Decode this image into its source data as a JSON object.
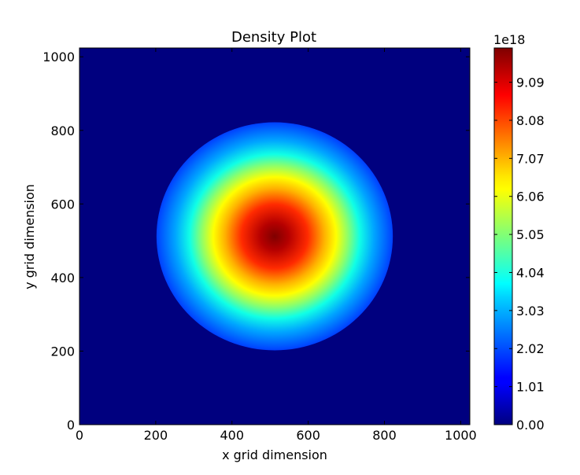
{
  "chart_data": {
    "type": "heatmap",
    "title": "Density Plot",
    "xlabel": "x grid dimension",
    "ylabel": "y grid dimension",
    "xlim": [
      0,
      1024
    ],
    "ylim": [
      0,
      1024
    ],
    "x_ticks": [
      0,
      200,
      400,
      600,
      800,
      1000
    ],
    "y_ticks": [
      0,
      200,
      400,
      600,
      800,
      1000
    ],
    "grid": false,
    "colormap": "jet",
    "background_value": 0,
    "peak": {
      "x": 512,
      "y": 512,
      "value": 1e+19
    },
    "disk_radius": 310,
    "colorbar": {
      "multiplier_label": "1e18",
      "ticks": [
        0.0,
        1.01,
        2.02,
        3.03,
        4.04,
        5.05,
        6.06,
        7.07,
        8.08,
        9.09
      ],
      "tick_labels": [
        "0.00",
        "1.01",
        "2.02",
        "3.03",
        "4.04",
        "5.05",
        "6.06",
        "7.07",
        "8.08",
        "9.09"
      ],
      "range": [
        0,
        10
      ]
    },
    "colors": {
      "low": "#00007f",
      "high": "#7f0000"
    }
  }
}
